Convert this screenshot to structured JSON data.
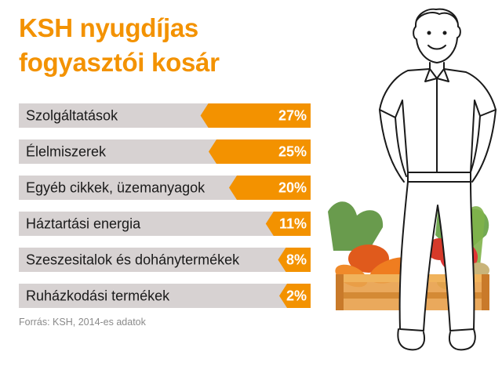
{
  "header": {
    "title_line1": "KSH nyugdíjas",
    "title_line2": "fogyasztói kosár"
  },
  "footer": {
    "source": "Forrás: KSH, 2014-es adatok"
  },
  "colors": {
    "accent": "#f39200",
    "row_background": "#d7d2d2",
    "text": "#1a1a1a"
  },
  "illustration": {
    "icon": "man-with-vegetable-crate-illustration"
  },
  "chart_data": {
    "type": "bar",
    "orientation": "horizontal",
    "categories": [
      "Szolgáltatások",
      "Élelmiszerek",
      "Egyéb cikkek, üzemanyagok",
      "Háztartási energia",
      "Szeszesitalok és dohánytermékek",
      "Ruházkodási termékek"
    ],
    "values": [
      27,
      25,
      20,
      11,
      8,
      2
    ],
    "value_labels": [
      "27%",
      "25%",
      "20%",
      "11%",
      "8%",
      "2%"
    ],
    "unit": "%"
  }
}
